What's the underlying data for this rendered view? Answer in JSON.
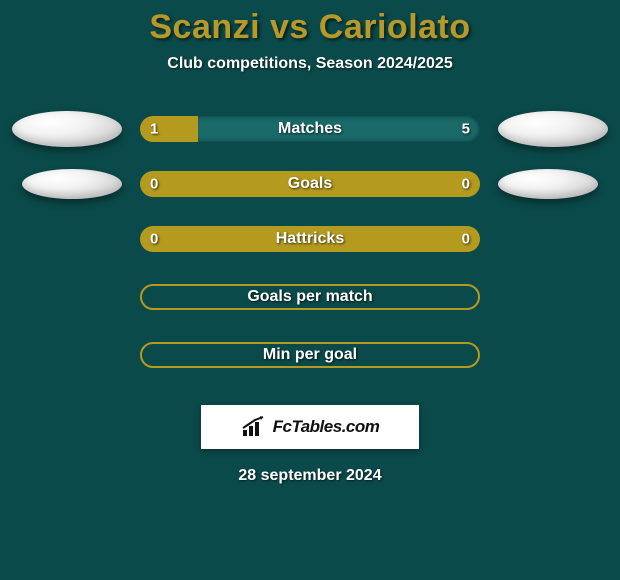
{
  "background_color": "#0b4a4a",
  "accent_color": "#b49a1f",
  "title_text_color": "#b6992a",
  "title": "Scanzi vs Cariolato",
  "subtitle": "Club competitions, Season 2024/2025",
  "bars": [
    {
      "label": "Matches",
      "left_value": "1",
      "right_value": "5",
      "type": "split",
      "left_pct": 17,
      "right_pct": 83,
      "left_orb": true,
      "right_orb": true
    },
    {
      "label": "Goals",
      "left_value": "0",
      "right_value": "0",
      "type": "full",
      "left_orb": true,
      "right_orb": true
    },
    {
      "label": "Hattricks",
      "left_value": "0",
      "right_value": "0",
      "type": "full",
      "left_orb": false,
      "right_orb": false
    },
    {
      "label": "Goals per match",
      "left_value": "",
      "right_value": "",
      "type": "outline",
      "left_orb": false,
      "right_orb": false
    },
    {
      "label": "Min per goal",
      "left_value": "",
      "right_value": "",
      "type": "outline",
      "left_orb": false,
      "right_orb": false
    }
  ],
  "logo": {
    "text": "FcTables.com"
  },
  "date": "28 september 2024"
}
